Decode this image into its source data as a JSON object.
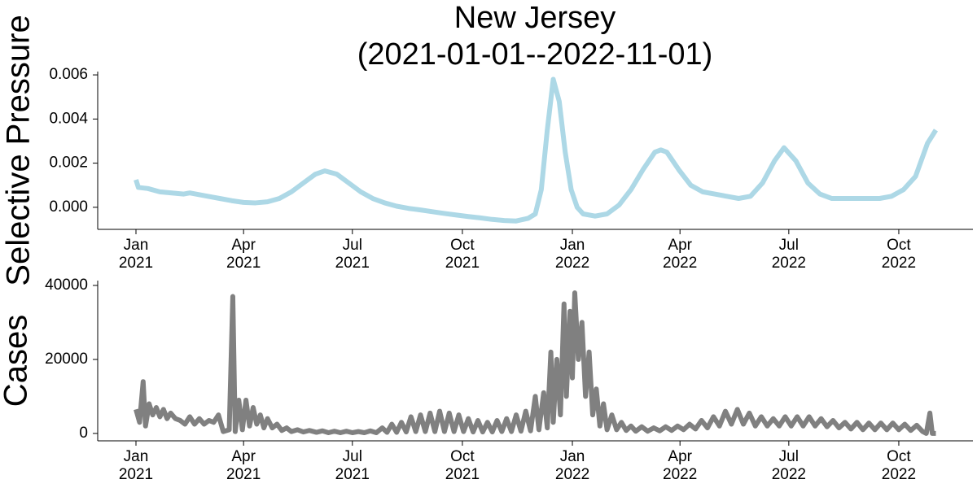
{
  "chart_data": [
    {
      "type": "line",
      "title": "New Jersey\n(2021-01-01--2022-11-01)",
      "y_label": "Selective Pressure",
      "color": "#add8e6",
      "x": [
        "2021-01-01",
        "2021-01-03",
        "2021-01-11",
        "2021-01-21",
        "2021-01-31",
        "2021-02-10",
        "2021-02-15",
        "2021-02-20",
        "2021-03-02",
        "2021-03-12",
        "2021-03-22",
        "2021-04-01",
        "2021-04-11",
        "2021-04-21",
        "2021-05-01",
        "2021-05-11",
        "2021-05-21",
        "2021-05-31",
        "2021-06-08",
        "2021-06-18",
        "2021-06-28",
        "2021-07-08",
        "2021-07-18",
        "2021-07-28",
        "2021-08-07",
        "2021-08-17",
        "2021-08-27",
        "2021-09-06",
        "2021-09-16",
        "2021-09-26",
        "2021-10-06",
        "2021-10-16",
        "2021-10-26",
        "2021-11-05",
        "2021-11-15",
        "2021-11-25",
        "2021-12-01",
        "2021-12-06",
        "2021-12-11",
        "2021-12-16",
        "2021-12-21",
        "2021-12-26",
        "2021-12-31",
        "2022-01-05",
        "2022-01-10",
        "2022-01-20",
        "2022-01-30",
        "2022-02-09",
        "2022-02-19",
        "2022-03-01",
        "2022-03-11",
        "2022-03-16",
        "2022-03-21",
        "2022-03-31",
        "2022-04-10",
        "2022-04-20",
        "2022-04-30",
        "2022-05-10",
        "2022-05-20",
        "2022-05-30",
        "2022-06-09",
        "2022-06-19",
        "2022-06-27",
        "2022-07-07",
        "2022-07-17",
        "2022-07-27",
        "2022-08-06",
        "2022-08-16",
        "2022-08-26",
        "2022-09-05",
        "2022-09-15",
        "2022-09-25",
        "2022-10-05",
        "2022-10-15",
        "2022-10-25",
        "2022-11-01"
      ],
      "values": [
        0.00125,
        0.0009,
        0.00085,
        0.0007,
        0.00065,
        0.0006,
        0.00065,
        0.0006,
        0.0005,
        0.0004,
        0.0003,
        0.00022,
        0.0002,
        0.00025,
        0.0004,
        0.0007,
        0.0011,
        0.0015,
        0.00165,
        0.0015,
        0.0011,
        0.0007,
        0.0004,
        0.0002,
        5e-05,
        -5e-05,
        -0.00012,
        -0.0002,
        -0.00028,
        -0.00035,
        -0.00042,
        -0.00048,
        -0.00055,
        -0.0006,
        -0.00062,
        -0.0005,
        -0.0003,
        0.0008,
        0.0035,
        0.0058,
        0.0048,
        0.0025,
        0.0008,
        0.0,
        -0.0003,
        -0.0004,
        -0.0003,
        0.0001,
        0.0008,
        0.0017,
        0.0025,
        0.0026,
        0.0025,
        0.0017,
        0.001,
        0.0007,
        0.0006,
        0.0005,
        0.0004,
        0.0005,
        0.0011,
        0.0021,
        0.0027,
        0.0021,
        0.0011,
        0.0006,
        0.0004,
        0.0004,
        0.0004,
        0.0004,
        0.0004,
        0.0005,
        0.0008,
        0.0014,
        0.0029,
        0.0035
      ],
      "xlim": [
        "2020-11-30",
        "2022-12-02"
      ],
      "xticks": [
        {
          "value": "2021-01-01",
          "label": "Jan\n2021"
        },
        {
          "value": "2021-04-01",
          "label": "Apr\n2021"
        },
        {
          "value": "2021-07-01",
          "label": "Jul\n2021"
        },
        {
          "value": "2021-10-01",
          "label": "Oct\n2021"
        },
        {
          "value": "2022-01-01",
          "label": "Jan\n2022"
        },
        {
          "value": "2022-04-01",
          "label": "Apr\n2022"
        },
        {
          "value": "2022-07-01",
          "label": "Jul\n2022"
        },
        {
          "value": "2022-10-01",
          "label": "Oct\n2022"
        }
      ],
      "ylim": [
        -0.001,
        0.00615
      ],
      "yticks": [
        {
          "value": 0,
          "label": "0.000"
        },
        0.002,
        0.004,
        0.006
      ]
    },
    {
      "type": "line",
      "y_label": "Cases",
      "color": "#808080",
      "x": [
        "2021-01-01",
        "2021-01-04",
        "2021-01-07",
        "2021-01-09",
        "2021-01-12",
        "2021-01-15",
        "2021-01-18",
        "2021-01-21",
        "2021-01-24",
        "2021-01-27",
        "2021-01-30",
        "2021-02-03",
        "2021-02-07",
        "2021-02-11",
        "2021-02-15",
        "2021-02-19",
        "2021-02-23",
        "2021-02-27",
        "2021-03-03",
        "2021-03-07",
        "2021-03-11",
        "2021-03-15",
        "2021-03-20",
        "2021-03-23",
        "2021-03-25",
        "2021-03-28",
        "2021-03-31",
        "2021-04-03",
        "2021-04-06",
        "2021-04-09",
        "2021-04-12",
        "2021-04-15",
        "2021-04-18",
        "2021-04-21",
        "2021-04-25",
        "2021-04-29",
        "2021-05-03",
        "2021-05-07",
        "2021-05-11",
        "2021-05-16",
        "2021-05-21",
        "2021-05-26",
        "2021-06-01",
        "2021-06-06",
        "2021-06-11",
        "2021-06-16",
        "2021-06-21",
        "2021-06-26",
        "2021-07-01",
        "2021-07-06",
        "2021-07-11",
        "2021-07-16",
        "2021-07-21",
        "2021-07-26",
        "2021-07-30",
        "2021-08-03",
        "2021-08-07",
        "2021-08-11",
        "2021-08-15",
        "2021-08-19",
        "2021-08-23",
        "2021-08-27",
        "2021-08-31",
        "2021-09-04",
        "2021-09-08",
        "2021-09-12",
        "2021-09-16",
        "2021-09-20",
        "2021-09-24",
        "2021-09-28",
        "2021-10-02",
        "2021-10-06",
        "2021-10-10",
        "2021-10-14",
        "2021-10-18",
        "2021-10-22",
        "2021-10-26",
        "2021-10-30",
        "2021-11-03",
        "2021-11-07",
        "2021-11-11",
        "2021-11-15",
        "2021-11-19",
        "2021-11-23",
        "2021-11-27",
        "2021-12-01",
        "2021-12-04",
        "2021-12-08",
        "2021-12-11",
        "2021-12-14",
        "2021-12-16",
        "2021-12-19",
        "2021-12-22",
        "2021-12-25",
        "2021-12-27",
        "2021-12-30",
        "2022-01-01",
        "2022-01-03",
        "2022-01-06",
        "2022-01-09",
        "2022-01-12",
        "2022-01-15",
        "2022-01-18",
        "2022-01-21",
        "2022-01-24",
        "2022-01-27",
        "2022-01-30",
        "2022-02-03",
        "2022-02-07",
        "2022-02-11",
        "2022-02-15",
        "2022-02-19",
        "2022-02-23",
        "2022-02-28",
        "2022-03-05",
        "2022-03-10",
        "2022-03-15",
        "2022-03-20",
        "2022-03-25",
        "2022-03-30",
        "2022-04-04",
        "2022-04-09",
        "2022-04-14",
        "2022-04-19",
        "2022-04-24",
        "2022-04-29",
        "2022-05-04",
        "2022-05-09",
        "2022-05-14",
        "2022-05-19",
        "2022-05-24",
        "2022-05-29",
        "2022-06-03",
        "2022-06-08",
        "2022-06-13",
        "2022-06-18",
        "2022-06-23",
        "2022-06-28",
        "2022-07-03",
        "2022-07-08",
        "2022-07-13",
        "2022-07-18",
        "2022-07-23",
        "2022-07-28",
        "2022-08-02",
        "2022-08-07",
        "2022-08-12",
        "2022-08-17",
        "2022-08-22",
        "2022-08-27",
        "2022-09-01",
        "2022-09-06",
        "2022-09-11",
        "2022-09-16",
        "2022-09-21",
        "2022-09-26",
        "2022-10-01",
        "2022-10-06",
        "2022-10-11",
        "2022-10-16",
        "2022-10-21",
        "2022-10-24",
        "2022-10-27",
        "2022-10-29",
        "2022-11-01"
      ],
      "values": [
        6500,
        3000,
        14000,
        2000,
        8000,
        5000,
        7000,
        4500,
        6500,
        4000,
        5500,
        4000,
        3500,
        2500,
        4500,
        2500,
        4000,
        2500,
        3500,
        3000,
        5000,
        500,
        1000,
        37000,
        500,
        9000,
        1000,
        9000,
        2000,
        7000,
        2500,
        5000,
        1500,
        4000,
        1500,
        2500,
        800,
        1500,
        500,
        1000,
        400,
        800,
        300,
        700,
        200,
        600,
        200,
        600,
        200,
        500,
        200,
        700,
        200,
        1500,
        300,
        2500,
        300,
        3000,
        400,
        4500,
        500,
        5000,
        500,
        5500,
        500,
        6000,
        500,
        5500,
        500,
        5000,
        500,
        4000,
        400,
        3500,
        400,
        3000,
        400,
        3500,
        500,
        4000,
        500,
        5000,
        600,
        6000,
        700,
        10000,
        1000,
        11000,
        1500,
        22000,
        3000,
        20000,
        5000,
        35000,
        10000,
        33000,
        15000,
        38000,
        20000,
        30000,
        10000,
        22000,
        5000,
        12000,
        2000,
        8000,
        1000,
        5000,
        1000,
        3000,
        800,
        2000,
        600,
        1800,
        600,
        1500,
        700,
        1800,
        800,
        2000,
        1000,
        2500,
        1200,
        3500,
        1500,
        4500,
        2000,
        6000,
        2500,
        6500,
        2500,
        5500,
        2000,
        4500,
        2000,
        4000,
        2000,
        4500,
        2000,
        4500,
        2000,
        4500,
        2000,
        4000,
        1800,
        3500,
        1500,
        3000,
        1200,
        3000,
        1000,
        2800,
        1000,
        2800,
        1000,
        2800,
        1000,
        2500,
        800,
        2200,
        500,
        0,
        5500,
        0,
        0
      ],
      "xlim": [
        "2020-11-30",
        "2022-12-02"
      ],
      "xticks": [
        {
          "value": "2021-01-01",
          "label": "Jan\n2021"
        },
        {
          "value": "2021-04-01",
          "label": "Apr\n2021"
        },
        {
          "value": "2021-07-01",
          "label": "Jul\n2021"
        },
        {
          "value": "2021-10-01",
          "label": "Oct\n2021"
        },
        {
          "value": "2022-01-01",
          "label": "Jan\n2022"
        },
        {
          "value": "2022-04-01",
          "label": "Apr\n2022"
        },
        {
          "value": "2022-07-01",
          "label": "Jul\n2022"
        },
        {
          "value": "2022-10-01",
          "label": "Oct\n2022"
        }
      ],
      "ylim": [
        -2000,
        41300
      ],
      "yticks": [
        0,
        20000,
        40000
      ]
    }
  ]
}
